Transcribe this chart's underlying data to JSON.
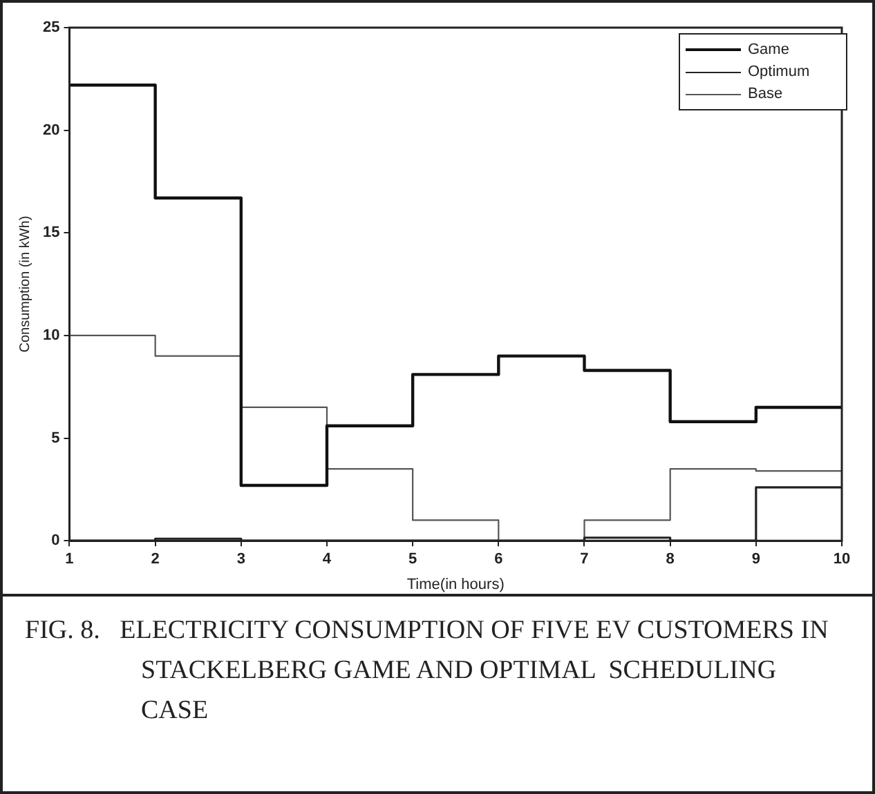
{
  "chart_data": {
    "type": "step",
    "xlabel": "Time(in hours)",
    "ylabel": "Consumption (in kWh)",
    "x": [
      1,
      2,
      3,
      4,
      5,
      6,
      7,
      8,
      9,
      10
    ],
    "series": [
      {
        "name": "Game",
        "color": "#111111",
        "values": [
          22.2,
          16.7,
          2.7,
          5.6,
          8.1,
          9.0,
          8.3,
          5.8,
          6.5,
          6.5
        ]
      },
      {
        "name": "Optimum",
        "color": "#222222",
        "values": [
          0,
          0.1,
          0,
          0,
          0,
          0,
          0.15,
          0,
          2.6,
          2.6
        ]
      },
      {
        "name": "Base",
        "color": "#555555",
        "values": [
          10,
          9,
          6.5,
          3.5,
          1.0,
          0,
          1.0,
          3.5,
          3.4,
          3.4
        ]
      }
    ],
    "xlim": [
      1,
      10
    ],
    "xticks": [
      1,
      2,
      3,
      4,
      5,
      6,
      7,
      8,
      9,
      10
    ],
    "ylim": [
      0,
      25
    ],
    "yticks": [
      0,
      5,
      10,
      15,
      20,
      25
    ],
    "grid": false,
    "legend": "top right",
    "annotations": [
      "FIG. 8.   ELECTRICITY CONSUMPTION OF FIVE EV CUSTOMERS IN STACKELBERG GAME AND OPTIMAL  SCHEDULING  CASE"
    ]
  }
}
